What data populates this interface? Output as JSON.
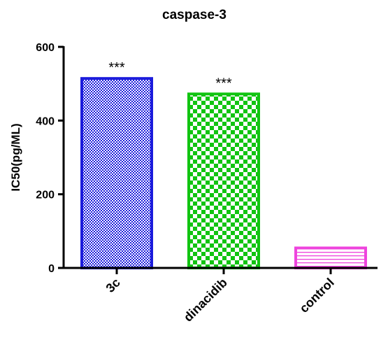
{
  "chart_data": {
    "type": "bar",
    "title": "caspase-3",
    "xlabel": "",
    "ylabel": "IC50(pg/ML)",
    "ylim": [
      0,
      600
    ],
    "yticks": [
      0,
      200,
      400,
      600
    ],
    "grid": false,
    "categories": [
      "3c",
      "dinacidib",
      "control"
    ],
    "values": [
      518,
      476,
      58
    ],
    "annotations": [
      "***",
      "***",
      ""
    ],
    "colors": [
      "#1c1cdc",
      "#11c411",
      "#ee44dd"
    ],
    "patterns": [
      "dense-check",
      "checkerboard",
      "horizontal-lines"
    ]
  }
}
